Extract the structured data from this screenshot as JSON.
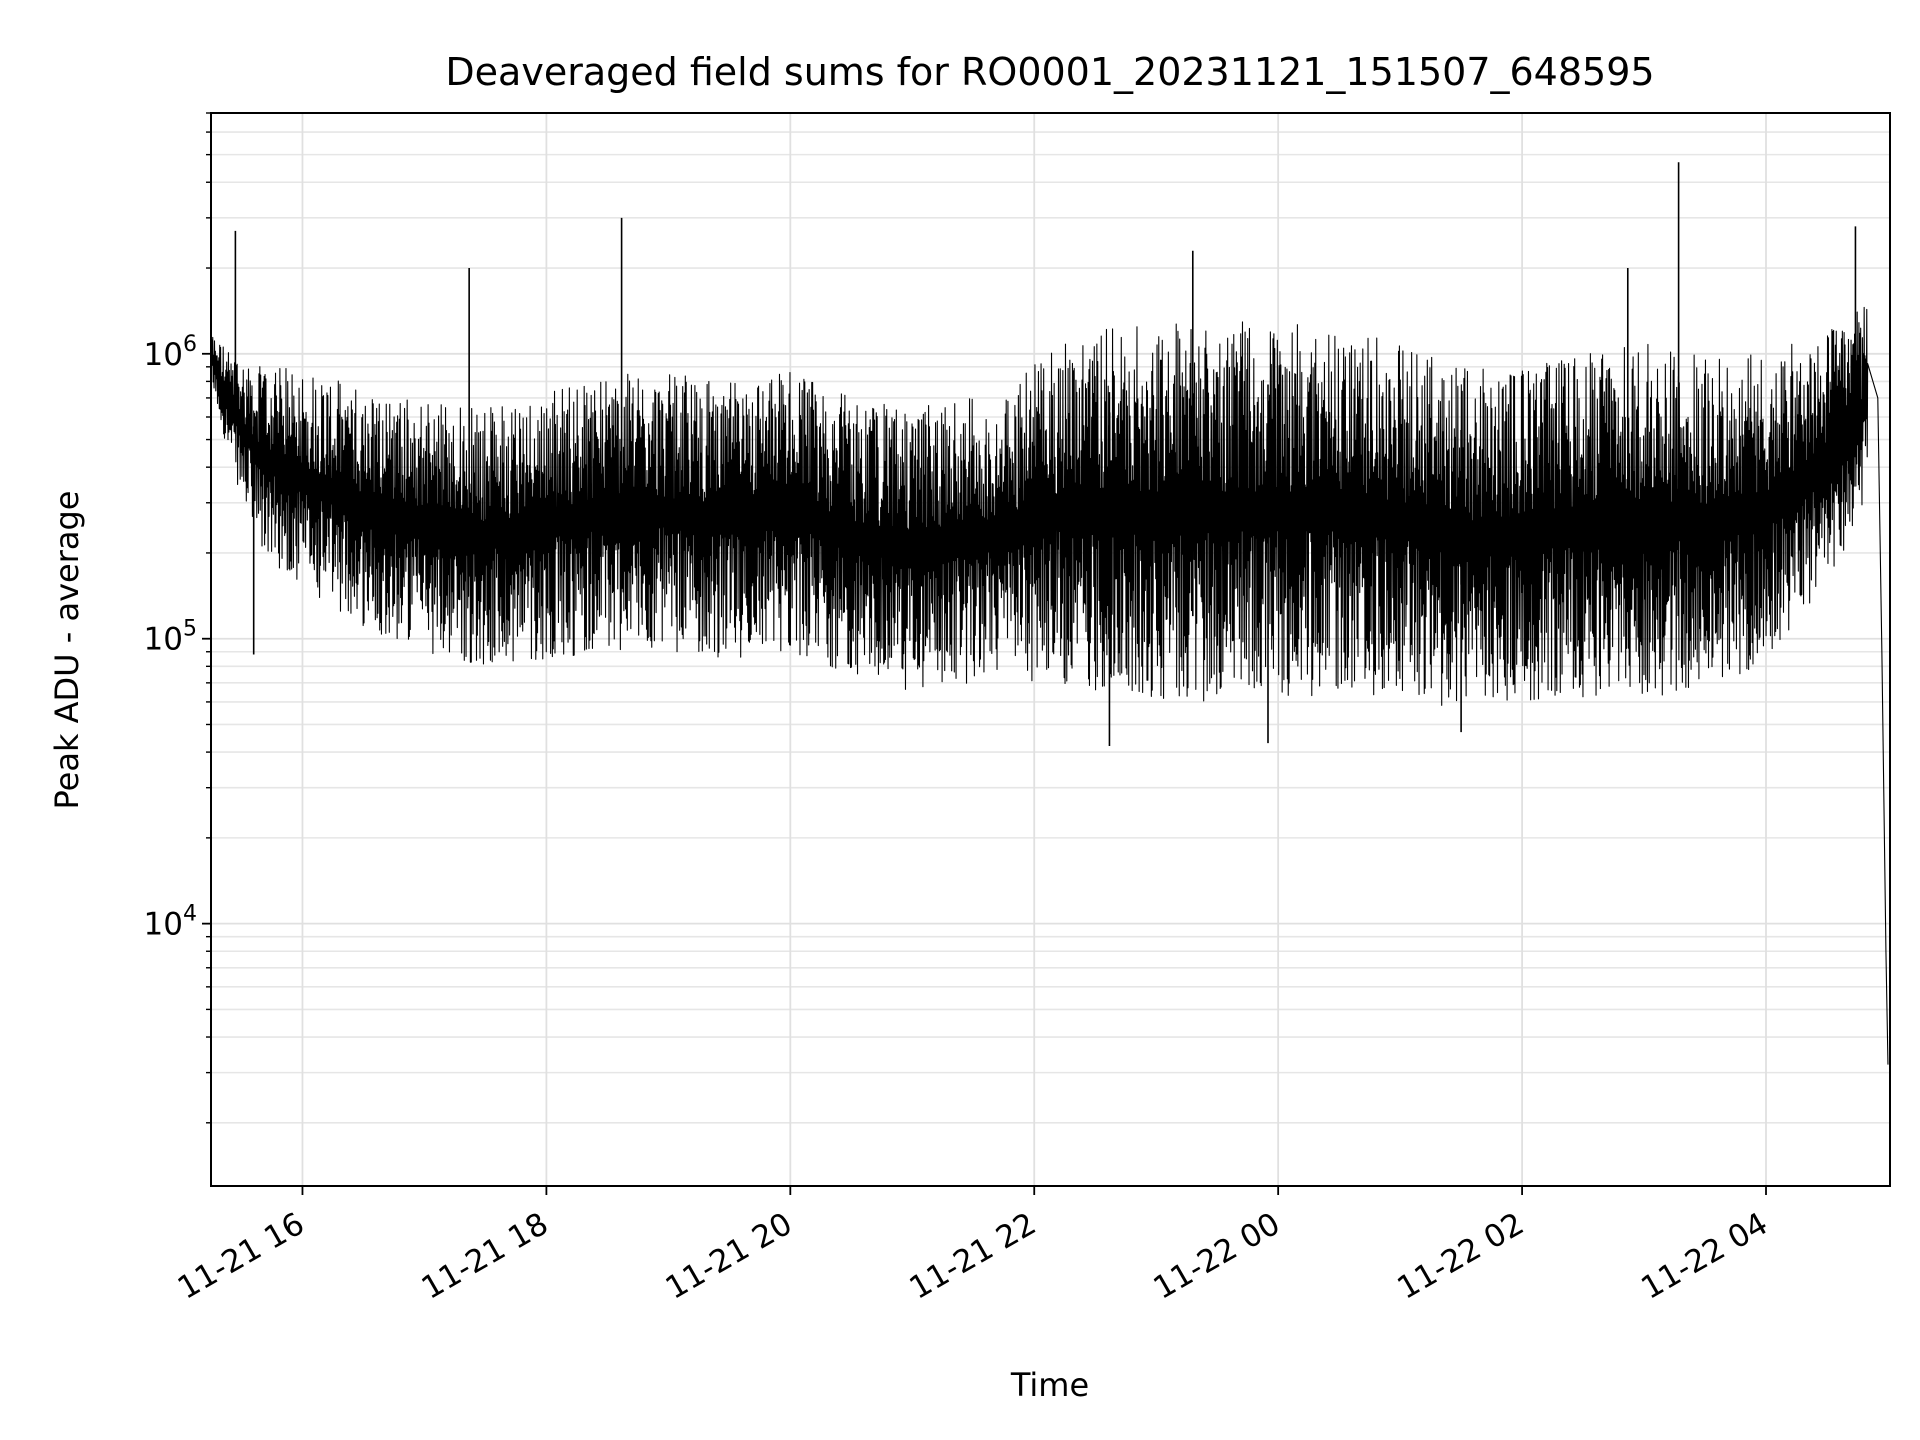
{
  "chart_data": {
    "type": "line",
    "title": "Deaveraged field sums for RO0001_20231121_151507_648595",
    "xlabel": "Time",
    "ylabel": "Peak ADU - average",
    "yscale": "log",
    "ylim": [
      1200,
      7000000
    ],
    "xlim": [
      "2023-11-21 15:15",
      "2023-11-22 05:01"
    ],
    "grid": true,
    "x_ticks": [
      {
        "value": "2023-11-21 16:00",
        "label": "11-21 16"
      },
      {
        "value": "2023-11-21 18:00",
        "label": "11-21 18"
      },
      {
        "value": "2023-11-21 20:00",
        "label": "11-21 20"
      },
      {
        "value": "2023-11-21 22:00",
        "label": "11-21 22"
      },
      {
        "value": "2023-11-22 00:00",
        "label": "11-22 00"
      },
      {
        "value": "2023-11-22 02:00",
        "label": "11-22 02"
      },
      {
        "value": "2023-11-22 04:00",
        "label": "11-22 04"
      }
    ],
    "y_ticks": [
      {
        "value": 10000,
        "base": "10",
        "exp": "4"
      },
      {
        "value": 100000,
        "base": "10",
        "exp": "5"
      },
      {
        "value": 1000000,
        "base": "10",
        "exp": "6"
      }
    ],
    "line_color": "#000000",
    "envelope": {
      "x": [
        "2023-11-21 15:15",
        "2023-11-21 15:25",
        "2023-11-21 15:40",
        "2023-11-21 16:00",
        "2023-11-21 16:30",
        "2023-11-21 17:00",
        "2023-11-21 17:30",
        "2023-11-21 18:00",
        "2023-11-21 18:30",
        "2023-11-21 19:00",
        "2023-11-21 19:30",
        "2023-11-21 20:00",
        "2023-11-21 20:30",
        "2023-11-21 21:00",
        "2023-11-21 21:30",
        "2023-11-21 21:50",
        "2023-11-21 22:00",
        "2023-11-21 22:30",
        "2023-11-21 23:00",
        "2023-11-21 23:30",
        "2023-11-22 00:00",
        "2023-11-22 00:30",
        "2023-11-22 01:00",
        "2023-11-22 01:30",
        "2023-11-22 02:00",
        "2023-11-22 02:30",
        "2023-11-22 03:00",
        "2023-11-22 03:30",
        "2023-11-22 04:00",
        "2023-11-22 04:30",
        "2023-11-22 04:50"
      ],
      "upper": [
        1200000,
        1000000,
        900000,
        900000,
        750000,
        700000,
        650000,
        750000,
        850000,
        850000,
        800000,
        900000,
        700000,
        650000,
        700000,
        700000,
        1100000,
        1200000,
        1300000,
        1300000,
        1300000,
        1200000,
        1100000,
        900000,
        900000,
        1000000,
        1100000,
        1000000,
        1000000,
        1200000,
        1500000
      ],
      "lower": [
        800000,
        400000,
        200000,
        150000,
        110000,
        90000,
        80000,
        85000,
        90000,
        90000,
        85000,
        90000,
        75000,
        65000,
        70000,
        80000,
        70000,
        65000,
        60000,
        60000,
        60000,
        65000,
        62000,
        55000,
        60000,
        62000,
        62000,
        65000,
        80000,
        150000,
        300000
      ]
    },
    "spikes": [
      {
        "x": "2023-11-21 15:27",
        "y": 2700000
      },
      {
        "x": "2023-11-21 17:22",
        "y": 2000000
      },
      {
        "x": "2023-11-21 18:37",
        "y": 3000000
      },
      {
        "x": "2023-11-21 23:18",
        "y": 2300000
      },
      {
        "x": "2023-11-22 02:52",
        "y": 2000000
      },
      {
        "x": "2023-11-22 03:17",
        "y": 4700000
      },
      {
        "x": "2023-11-22 04:44",
        "y": 2800000
      }
    ],
    "dips": [
      {
        "x": "2023-11-21 15:36",
        "y": 88000
      },
      {
        "x": "2023-11-21 22:37",
        "y": 42000
      },
      {
        "x": "2023-11-21 23:55",
        "y": 43000
      },
      {
        "x": "2023-11-22 01:30",
        "y": 47000
      }
    ],
    "tail": [
      {
        "x": "2023-11-22 04:55",
        "y": 700000
      },
      {
        "x": "2023-11-22 04:57",
        "y": 90000
      },
      {
        "x": "2023-11-22 04:59",
        "y": 8000
      },
      {
        "x": "2023-11-22 05:00",
        "y": 3200
      }
    ]
  }
}
